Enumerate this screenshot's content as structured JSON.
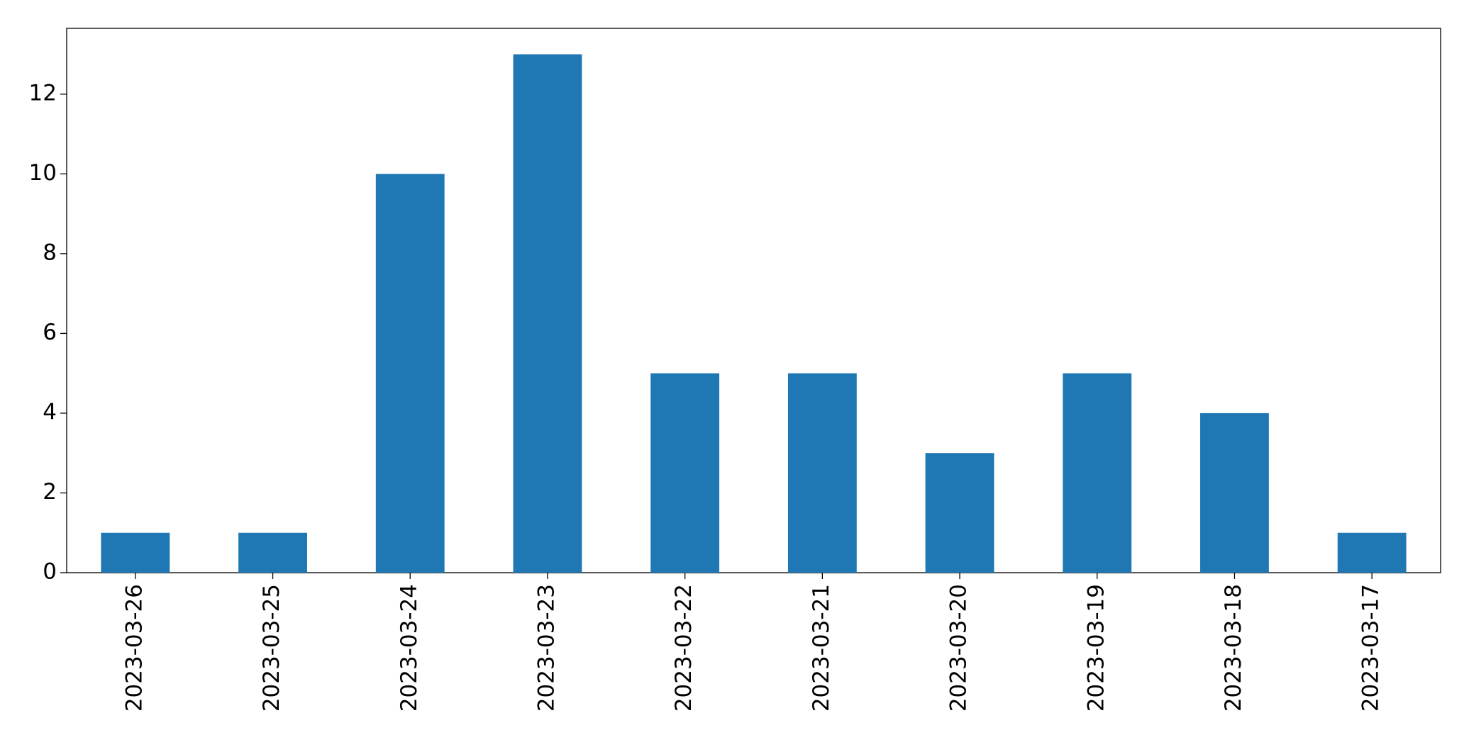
{
  "chart_data": {
    "type": "bar",
    "categories": [
      "2023-03-26",
      "2023-03-25",
      "2023-03-24",
      "2023-03-23",
      "2023-03-22",
      "2023-03-21",
      "2023-03-20",
      "2023-03-19",
      "2023-03-18",
      "2023-03-17"
    ],
    "values": [
      1,
      1,
      10,
      13,
      5,
      5,
      3,
      5,
      4,
      1
    ],
    "color": "#1f77b4",
    "ylim": [
      0,
      13.65
    ],
    "yticks": [
      0,
      2,
      4,
      6,
      8,
      10,
      12
    ],
    "grid": false
  }
}
